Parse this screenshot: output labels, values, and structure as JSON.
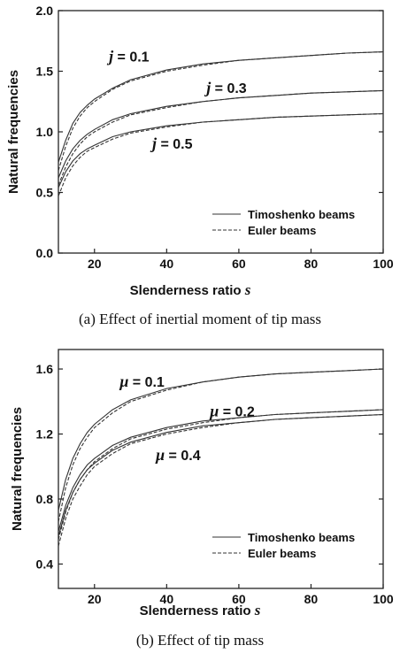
{
  "chart_data": [
    {
      "type": "line",
      "caption": "(a) Effect of inertial moment of tip mass",
      "xlabel": "Slenderness ratio",
      "xlabel_var": "s",
      "ylabel": "Natural frequencies",
      "xlim": [
        10,
        100
      ],
      "ylim": [
        0.0,
        2.0
      ],
      "xticks": [
        20,
        40,
        60,
        80,
        100
      ],
      "yticks": [
        0.0,
        0.5,
        1.0,
        1.5,
        2.0
      ],
      "ytick_decimals": 1,
      "legend": {
        "position": "lower-right",
        "entries": [
          {
            "label": "Timoshenko beams",
            "style": "solid"
          },
          {
            "label": "Euler beams",
            "style": "dashed"
          }
        ]
      },
      "annotations": [
        {
          "var": "j",
          "text": " = 0.1",
          "x": 24,
          "y": 1.58
        },
        {
          "var": "j",
          "text": " = 0.3",
          "x": 51,
          "y": 1.32
        },
        {
          "var": "j",
          "text": " = 0.5",
          "x": 36,
          "y": 0.86
        }
      ],
      "series": [
        {
          "style": "solid",
          "x": [
            10,
            12,
            14,
            16,
            18,
            20,
            25,
            30,
            40,
            50,
            60,
            70,
            80,
            90,
            100
          ],
          "y": [
            0.75,
            0.93,
            1.07,
            1.16,
            1.22,
            1.27,
            1.36,
            1.43,
            1.51,
            1.56,
            1.59,
            1.61,
            1.63,
            1.65,
            1.66
          ]
        },
        {
          "style": "dashed",
          "x": [
            10,
            12,
            14,
            16,
            18,
            20,
            25,
            30,
            40,
            50,
            60,
            70,
            80,
            90,
            100
          ],
          "y": [
            0.68,
            0.88,
            1.03,
            1.13,
            1.2,
            1.25,
            1.35,
            1.42,
            1.5,
            1.55,
            1.59,
            1.61,
            1.63,
            1.65,
            1.66
          ]
        },
        {
          "style": "solid",
          "x": [
            10,
            12,
            14,
            16,
            18,
            20,
            25,
            30,
            40,
            50,
            60,
            70,
            80,
            90,
            100
          ],
          "y": [
            0.62,
            0.76,
            0.86,
            0.93,
            0.98,
            1.02,
            1.1,
            1.15,
            1.21,
            1.25,
            1.28,
            1.3,
            1.32,
            1.33,
            1.34
          ]
        },
        {
          "style": "dashed",
          "x": [
            10,
            12,
            14,
            16,
            18,
            20,
            25,
            30,
            40,
            50,
            60,
            70,
            80,
            90,
            100
          ],
          "y": [
            0.56,
            0.71,
            0.82,
            0.9,
            0.96,
            1.0,
            1.08,
            1.14,
            1.2,
            1.25,
            1.28,
            1.3,
            1.32,
            1.33,
            1.34
          ]
        },
        {
          "style": "solid",
          "x": [
            10,
            12,
            14,
            16,
            18,
            20,
            25,
            30,
            40,
            50,
            60,
            70,
            80,
            90,
            100
          ],
          "y": [
            0.54,
            0.67,
            0.76,
            0.82,
            0.86,
            0.89,
            0.96,
            1.0,
            1.05,
            1.08,
            1.1,
            1.12,
            1.13,
            1.14,
            1.15
          ]
        },
        {
          "style": "dashed",
          "x": [
            10,
            12,
            14,
            16,
            18,
            20,
            25,
            30,
            40,
            50,
            60,
            70,
            80,
            90,
            100
          ],
          "y": [
            0.47,
            0.62,
            0.72,
            0.79,
            0.84,
            0.87,
            0.94,
            0.99,
            1.04,
            1.08,
            1.1,
            1.12,
            1.13,
            1.14,
            1.15
          ]
        }
      ]
    },
    {
      "type": "line",
      "caption": "(b) Effect of tip mass",
      "xlabel": "Slenderness ratio",
      "xlabel_var": "s",
      "ylabel": "Natural frequencies",
      "xlim": [
        10,
        100
      ],
      "ylim": [
        0.25,
        1.72
      ],
      "xticks": [
        20,
        40,
        60,
        80,
        100
      ],
      "yticks": [
        0.4,
        0.8,
        1.2,
        1.6
      ],
      "ytick_decimals": 1,
      "legend": {
        "position": "lower-right",
        "entries": [
          {
            "label": "Timoshenko beams",
            "style": "solid"
          },
          {
            "label": "Euler beams",
            "style": "dashed"
          }
        ]
      },
      "annotations": [
        {
          "var": "μ",
          "text": " = 0.1",
          "x": 27,
          "y": 1.49
        },
        {
          "var": "μ",
          "text": " = 0.2",
          "x": 52,
          "y": 1.31
        },
        {
          "var": "μ",
          "text": " = 0.4",
          "x": 37,
          "y": 1.04
        }
      ],
      "series": [
        {
          "style": "solid",
          "x": [
            10,
            12,
            14,
            16,
            18,
            20,
            25,
            30,
            40,
            50,
            60,
            70,
            80,
            90,
            100
          ],
          "y": [
            0.73,
            0.92,
            1.05,
            1.14,
            1.21,
            1.26,
            1.35,
            1.41,
            1.48,
            1.52,
            1.55,
            1.57,
            1.58,
            1.59,
            1.6
          ]
        },
        {
          "style": "dashed",
          "x": [
            10,
            12,
            14,
            16,
            18,
            20,
            25,
            30,
            40,
            50,
            60,
            70,
            80,
            90,
            100
          ],
          "y": [
            0.66,
            0.87,
            1.01,
            1.11,
            1.18,
            1.24,
            1.33,
            1.4,
            1.47,
            1.52,
            1.55,
            1.57,
            1.58,
            1.59,
            1.6
          ]
        },
        {
          "style": "solid",
          "x": [
            10,
            12,
            14,
            16,
            18,
            20,
            25,
            30,
            40,
            50,
            60,
            70,
            80,
            90,
            100
          ],
          "y": [
            0.6,
            0.76,
            0.87,
            0.95,
            1.01,
            1.05,
            1.13,
            1.18,
            1.24,
            1.28,
            1.3,
            1.32,
            1.33,
            1.34,
            1.35
          ]
        },
        {
          "style": "dashed",
          "x": [
            10,
            12,
            14,
            16,
            18,
            20,
            25,
            30,
            40,
            50,
            60,
            70,
            80,
            90,
            100
          ],
          "y": [
            0.55,
            0.72,
            0.84,
            0.92,
            0.98,
            1.03,
            1.11,
            1.17,
            1.23,
            1.27,
            1.3,
            1.32,
            1.33,
            1.34,
            1.35
          ]
        },
        {
          "style": "solid",
          "x": [
            10,
            12,
            14,
            16,
            18,
            20,
            25,
            30,
            40,
            50,
            60,
            70,
            80,
            90,
            100
          ],
          "y": [
            0.57,
            0.73,
            0.84,
            0.92,
            0.98,
            1.02,
            1.1,
            1.15,
            1.21,
            1.25,
            1.27,
            1.29,
            1.3,
            1.31,
            1.32
          ]
        },
        {
          "style": "dashed",
          "x": [
            10,
            12,
            14,
            16,
            18,
            20,
            25,
            30,
            40,
            50,
            60,
            70,
            80,
            90,
            100
          ],
          "y": [
            0.51,
            0.68,
            0.8,
            0.88,
            0.95,
            1.0,
            1.08,
            1.14,
            1.2,
            1.24,
            1.27,
            1.29,
            1.3,
            1.31,
            1.32
          ]
        }
      ]
    }
  ]
}
